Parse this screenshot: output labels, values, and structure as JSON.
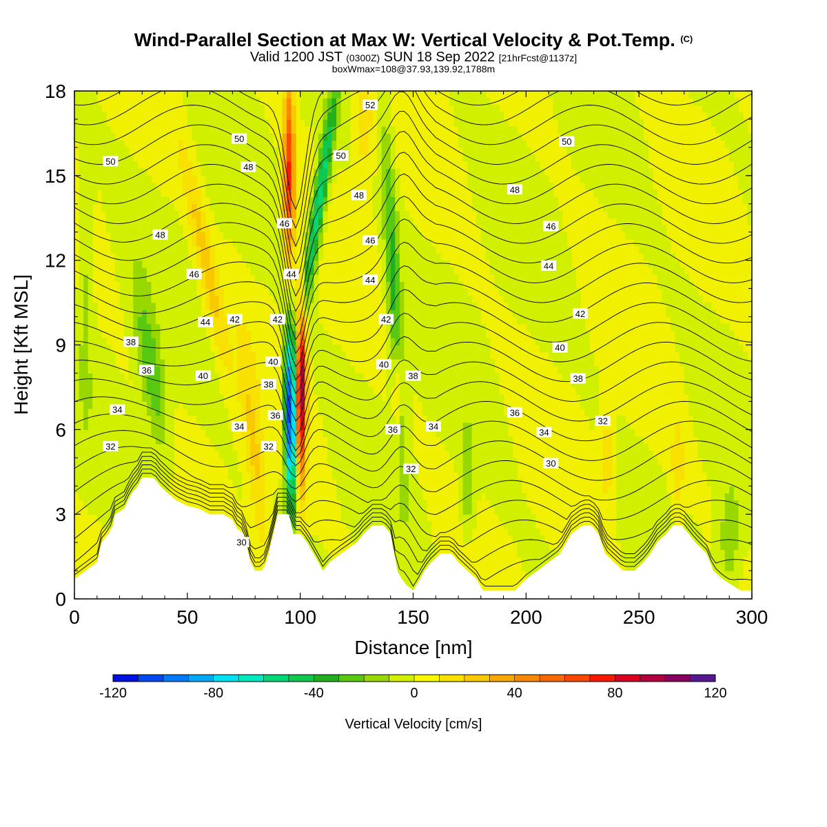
{
  "title": {
    "main": "Wind-Parallel Section at Max W: Vertical Velocity & Pot.Temp.",
    "copyright": "(C)",
    "valid_prefix": "Valid 1200 JST",
    "valid_utc": "(0300Z)",
    "valid_date": "SUN 18 Sep 2022",
    "forecast": "[21hrFcst@1137z]",
    "box_info": "boxWmax=108@37.93,139.92,1788m"
  },
  "chart_data": {
    "type": "heatmap",
    "xlabel": "Distance [nm]",
    "ylabel": "Height [Kft MSL]",
    "xlim": [
      0,
      300
    ],
    "ylim": [
      0,
      18
    ],
    "xticks": [
      "0",
      "50",
      "100",
      "150",
      "200",
      "250",
      "300"
    ],
    "yticks": [
      "0",
      "3",
      "6",
      "9",
      "12",
      "15",
      "18"
    ],
    "colorbar": {
      "label": "Vertical Velocity [cm/s]",
      "min": -120,
      "max": 120,
      "tick_labels": [
        "-120",
        "-80",
        "-40",
        "0",
        "40",
        "80",
        "120"
      ],
      "colors": [
        "#0010e0",
        "#0048f0",
        "#0078f8",
        "#00a8f8",
        "#00e0f0",
        "#00e8c0",
        "#00d878",
        "#10c850",
        "#20b020",
        "#58c810",
        "#98d800",
        "#d0f000",
        "#f8f800",
        "#f8e000",
        "#f8c800",
        "#f8a800",
        "#f88800",
        "#f86800",
        "#f84800",
        "#f81800",
        "#d80020",
        "#b00040",
        "#880060",
        "#581890"
      ]
    },
    "w_features": [
      {
        "x": 97,
        "z_range": [
          3,
          10
        ],
        "w": -110
      },
      {
        "x": 100,
        "z_range": [
          4,
          10
        ],
        "w": 108
      },
      {
        "x": 95,
        "z_range": [
          10,
          18
        ],
        "w": 70
      },
      {
        "x": 103,
        "z_range": [
          10,
          18
        ],
        "w": -60
      },
      {
        "x": 35,
        "z_range": [
          6,
          12
        ],
        "w": -30
      },
      {
        "x": 142,
        "z_range": [
          4,
          18
        ],
        "w": -35
      },
      {
        "x": 143,
        "z_range": [
          6,
          9
        ],
        "w": 30
      },
      {
        "x": 60,
        "z_range": [
          10,
          17
        ],
        "w": 25
      }
    ],
    "terrain": [
      [
        0,
        0.7
      ],
      [
        5,
        1
      ],
      [
        10,
        1.3
      ],
      [
        12,
        2
      ],
      [
        15,
        2.3
      ],
      [
        17,
        2.6
      ],
      [
        18,
        3
      ],
      [
        22,
        3.2
      ],
      [
        25,
        3.7
      ],
      [
        28,
        4
      ],
      [
        30,
        4.3
      ],
      [
        35,
        4.3
      ],
      [
        38,
        4
      ],
      [
        42,
        3.7
      ],
      [
        45,
        3.5
      ],
      [
        50,
        3.3
      ],
      [
        55,
        3.2
      ],
      [
        60,
        3
      ],
      [
        66,
        3
      ],
      [
        70,
        2.8
      ],
      [
        72,
        2.5
      ],
      [
        75,
        2.3
      ],
      [
        78,
        1.3
      ],
      [
        80,
        1
      ],
      [
        83,
        1
      ],
      [
        85,
        1.3
      ],
      [
        88,
        2.3
      ],
      [
        90,
        3
      ],
      [
        93,
        3
      ],
      [
        95,
        3
      ],
      [
        97,
        2.3
      ],
      [
        99,
        2.3
      ],
      [
        100,
        2.3
      ],
      [
        103,
        2
      ],
      [
        108,
        1.3
      ],
      [
        110,
        1
      ],
      [
        113,
        1.3
      ],
      [
        118,
        1.6
      ],
      [
        125,
        2
      ],
      [
        128,
        2.3
      ],
      [
        132,
        2.6
      ],
      [
        137,
        2.6
      ],
      [
        140,
        2.3
      ],
      [
        143,
        1
      ],
      [
        145,
        0.7
      ],
      [
        147,
        0.5
      ],
      [
        150,
        0.3
      ],
      [
        153,
        0.7
      ],
      [
        155,
        1
      ],
      [
        158,
        1.3
      ],
      [
        162,
        1.6
      ],
      [
        167,
        1.6
      ],
      [
        170,
        1.3
      ],
      [
        174,
        1
      ],
      [
        178,
        0.7
      ],
      [
        181,
        0.3
      ],
      [
        195,
        0.3
      ],
      [
        200,
        0.7
      ],
      [
        205,
        1
      ],
      [
        210,
        1.3
      ],
      [
        215,
        1.6
      ],
      [
        220,
        2.3
      ],
      [
        225,
        2.6
      ],
      [
        229,
        2.6
      ],
      [
        232,
        2.3
      ],
      [
        235,
        1.6
      ],
      [
        239,
        1.3
      ],
      [
        243,
        1
      ],
      [
        248,
        1
      ],
      [
        252,
        1.3
      ],
      [
        255,
        1.6
      ],
      [
        258,
        2
      ],
      [
        262,
        2.3
      ],
      [
        265,
        2.6
      ],
      [
        269,
        2.6
      ],
      [
        272,
        2.3
      ],
      [
        275,
        2
      ],
      [
        280,
        1.6
      ],
      [
        283,
        1
      ],
      [
        287,
        0.7
      ],
      [
        291,
        0.5
      ],
      [
        295,
        0.3
      ],
      [
        300,
        0.3
      ]
    ],
    "contour_labels": [
      {
        "text": "52",
        "x": 131,
        "z": 17.5
      },
      {
        "text": "50",
        "x": 16,
        "z": 15.5
      },
      {
        "text": "50",
        "x": 73,
        "z": 16.3
      },
      {
        "text": "50",
        "x": 118,
        "z": 15.7
      },
      {
        "text": "50",
        "x": 218,
        "z": 16.2
      },
      {
        "text": "48",
        "x": 77,
        "z": 15.3
      },
      {
        "text": "48",
        "x": 126,
        "z": 14.3
      },
      {
        "text": "48",
        "x": 195,
        "z": 14.5
      },
      {
        "text": "48",
        "x": 38,
        "z": 12.9
      },
      {
        "text": "46",
        "x": 93,
        "z": 13.3
      },
      {
        "text": "46",
        "x": 131,
        "z": 12.7
      },
      {
        "text": "46",
        "x": 211,
        "z": 13.2
      },
      {
        "text": "46",
        "x": 53,
        "z": 11.5
      },
      {
        "text": "44",
        "x": 96,
        "z": 11.5
      },
      {
        "text": "44",
        "x": 131,
        "z": 11.3
      },
      {
        "text": "44",
        "x": 210,
        "z": 11.8
      },
      {
        "text": "44",
        "x": 58,
        "z": 9.8
      },
      {
        "text": "42",
        "x": 71,
        "z": 9.9
      },
      {
        "text": "42",
        "x": 90,
        "z": 9.9
      },
      {
        "text": "42",
        "x": 138,
        "z": 9.9
      },
      {
        "text": "42",
        "x": 224,
        "z": 10.1
      },
      {
        "text": "40",
        "x": 88,
        "z": 8.4
      },
      {
        "text": "40",
        "x": 137,
        "z": 8.3
      },
      {
        "text": "40",
        "x": 215,
        "z": 8.9
      },
      {
        "text": "40",
        "x": 57,
        "z": 7.9
      },
      {
        "text": "38",
        "x": 25,
        "z": 9.1
      },
      {
        "text": "38",
        "x": 86,
        "z": 7.6
      },
      {
        "text": "38",
        "x": 150,
        "z": 7.9
      },
      {
        "text": "38",
        "x": 223,
        "z": 7.8
      },
      {
        "text": "36",
        "x": 32,
        "z": 8.1
      },
      {
        "text": "36",
        "x": 89,
        "z": 6.5
      },
      {
        "text": "36",
        "x": 141,
        "z": 6.0
      },
      {
        "text": "36",
        "x": 195,
        "z": 6.6
      },
      {
        "text": "34",
        "x": 19,
        "z": 6.7
      },
      {
        "text": "34",
        "x": 73,
        "z": 6.1
      },
      {
        "text": "34",
        "x": 159,
        "z": 6.1
      },
      {
        "text": "34",
        "x": 208,
        "z": 5.9
      },
      {
        "text": "32",
        "x": 16,
        "z": 5.4
      },
      {
        "text": "32",
        "x": 86,
        "z": 5.4
      },
      {
        "text": "32",
        "x": 149,
        "z": 4.6
      },
      {
        "text": "32",
        "x": 234,
        "z": 6.3
      },
      {
        "text": "30",
        "x": 74,
        "z": 2.0
      },
      {
        "text": "30",
        "x": 211,
        "z": 4.8
      }
    ]
  }
}
